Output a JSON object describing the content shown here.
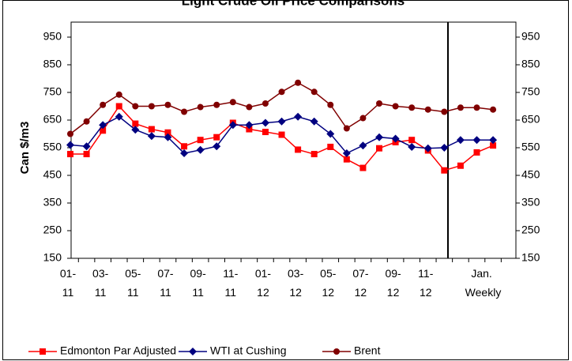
{
  "chart_data": {
    "type": "line",
    "title": "Light Crude Oil Price Comparisons",
    "y_label": "Can $/m3",
    "categories": [
      "01-11",
      null,
      "03-11",
      null,
      "05-11",
      null,
      "07-11",
      null,
      "09-11",
      null,
      "11-11",
      null,
      "01-12",
      null,
      "03-12",
      null,
      "05-12",
      null,
      "07-12",
      null,
      "09-12",
      null,
      "11-12",
      null,
      null,
      "Jan. Weekly",
      null
    ],
    "series": [
      {
        "name": "Edmonton Par Adjusted",
        "color": "#ff0000",
        "marker": "square",
        "values": [
          527,
          527,
          612,
          700,
          637,
          617,
          605,
          555,
          578,
          588,
          640,
          617,
          607,
          597,
          543,
          527,
          553,
          508,
          477,
          548,
          570,
          578,
          540,
          468,
          485,
          533,
          558
        ]
      },
      {
        "name": "WTI at Cushing",
        "color": "#000080",
        "marker": "diamond",
        "values": [
          560,
          555,
          632,
          662,
          615,
          592,
          588,
          530,
          542,
          555,
          632,
          632,
          640,
          645,
          662,
          645,
          600,
          530,
          558,
          588,
          583,
          553,
          548,
          550,
          578,
          578,
          578
        ]
      },
      {
        "name": "Brent",
        "color": "#800000",
        "marker": "circle",
        "values": [
          600,
          645,
          705,
          742,
          700,
          700,
          705,
          680,
          697,
          705,
          715,
          697,
          710,
          752,
          785,
          752,
          705,
          620,
          657,
          710,
          700,
          695,
          688,
          680,
          695,
          695,
          688
        ]
      }
    ],
    "ylim": [
      150,
      950
    ],
    "yticks": [
      150,
      250,
      350,
      450,
      550,
      650,
      750,
      850,
      950
    ],
    "y2lim": [
      150,
      950
    ],
    "y2ticks": [
      150,
      250,
      350,
      450,
      550,
      650,
      750,
      850,
      950
    ],
    "legend": "bottom"
  }
}
